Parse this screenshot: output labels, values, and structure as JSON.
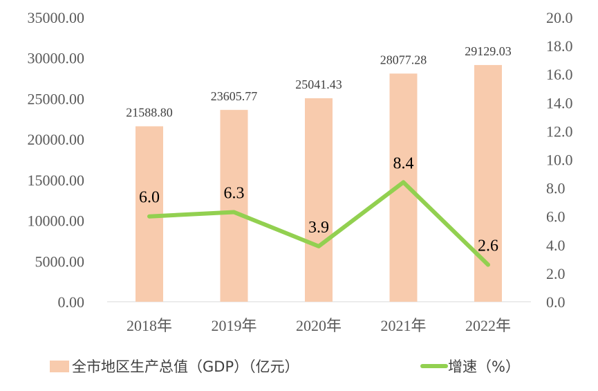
{
  "chart_data": {
    "type": "bar+line",
    "categories": [
      "2018年",
      "2019年",
      "2020年",
      "2021年",
      "2022年"
    ],
    "series": [
      {
        "name": "全市地区生产总值（GDP）（亿元）",
        "type": "bar",
        "axis": "left",
        "color": "#F8CBAD",
        "values": [
          21588.8,
          23605.77,
          25041.43,
          28077.28,
          29129.03
        ],
        "labels": [
          "21588.80",
          "23605.77",
          "25041.43",
          "28077.28",
          "29129.03"
        ]
      },
      {
        "name": "增速（%）",
        "type": "line",
        "axis": "right",
        "color": "#92D050",
        "values": [
          6.0,
          6.3,
          3.9,
          8.4,
          2.6
        ],
        "labels": [
          "6.0",
          "6.3",
          "3.9",
          "8.4",
          "2.6"
        ]
      }
    ],
    "left_axis": {
      "ylim": [
        0,
        35000
      ],
      "ticks": [
        "0.00",
        "5000.00",
        "10000.00",
        "15000.00",
        "20000.00",
        "25000.00",
        "30000.00",
        "35000.00"
      ]
    },
    "right_axis": {
      "ylim": [
        0,
        20
      ],
      "ticks": [
        "0.0",
        "2.0",
        "4.0",
        "6.0",
        "8.0",
        "10.0",
        "12.0",
        "14.0",
        "16.0",
        "18.0",
        "20.0"
      ]
    },
    "grid": false,
    "legend": "bottom"
  }
}
